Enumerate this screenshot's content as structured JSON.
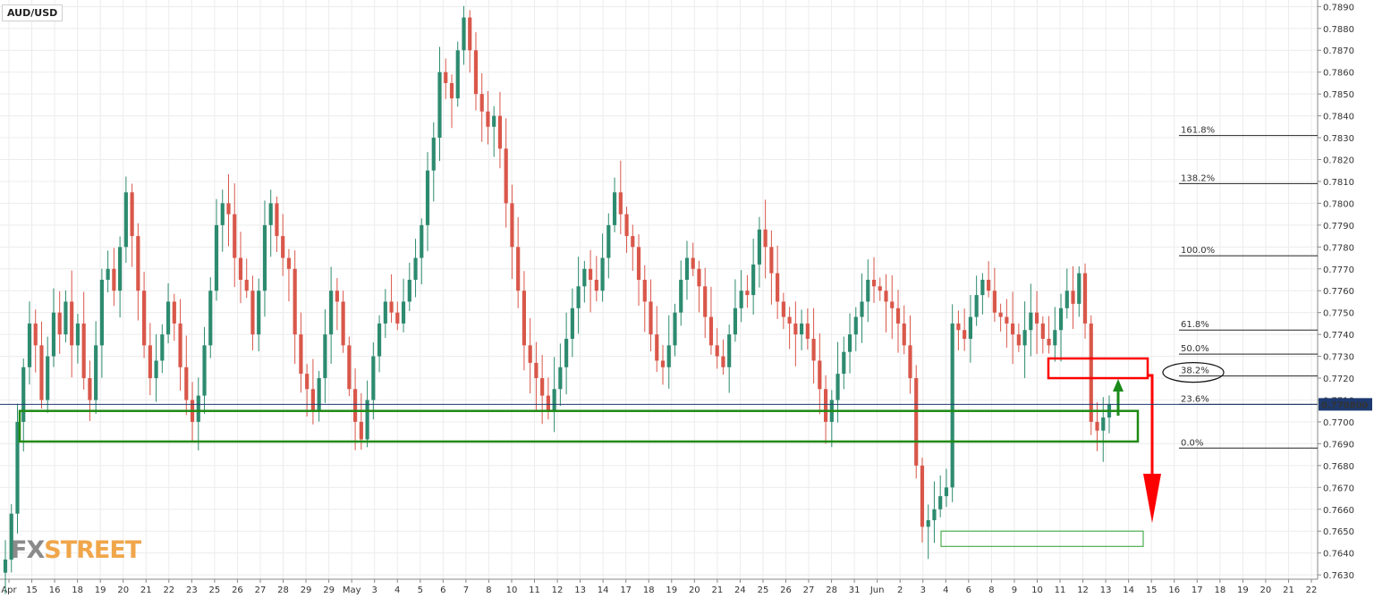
{
  "symbol": "AUD/USD",
  "logo": {
    "fx": "FX",
    "street": "STREET"
  },
  "current_price_label": "0.770800",
  "colors": {
    "up": "#2d8b6f",
    "down": "#d9574a",
    "support_box": "#1f8a14",
    "resistance_box": "#ff0000",
    "target_box": "#4caf50",
    "arrow_up": "#1a8a1a",
    "arrow_down": "#ff0000",
    "grid": "#ececec",
    "price_line": "#1e3a6e"
  },
  "chart_data": {
    "type": "candlestick",
    "title": "AUD/USD",
    "ylim": [
      0.7628,
      0.7893
    ],
    "y_ticks": [
      "0.7890",
      "0.7880",
      "0.7870",
      "0.7860",
      "0.7850",
      "0.7840",
      "0.7830",
      "0.7820",
      "0.7810",
      "0.7800",
      "0.7790",
      "0.7780",
      "0.7770",
      "0.7760",
      "0.7750",
      "0.7740",
      "0.7730",
      "0.7720",
      "0.7710",
      "0.7700",
      "0.7690",
      "0.7680",
      "0.7670",
      "0.7660",
      "0.7650",
      "0.7640",
      "0.7630"
    ],
    "x_ticks": [
      "Apr",
      "15",
      "16",
      "18",
      "19",
      "20",
      "21",
      "22",
      "23",
      "25",
      "26",
      "27",
      "28",
      "29",
      "29",
      "May",
      "3",
      "4",
      "5",
      "6",
      "7",
      "8",
      "10",
      "11",
      "12",
      "13",
      "14",
      "17",
      "18",
      "19",
      "20",
      "21",
      "24",
      "25",
      "26",
      "27",
      "28",
      "31",
      "Jun",
      "2",
      "3",
      "4",
      "6",
      "8",
      "9",
      "10",
      "11",
      "12",
      "13",
      "14",
      "15",
      "16",
      "17",
      "18",
      "19",
      "20",
      "21",
      "22"
    ],
    "current_price": 0.7708,
    "fibonacci": [
      {
        "label": "161.8%",
        "value": 0.7831
      },
      {
        "label": "138.2%",
        "value": 0.7809
      },
      {
        "label": "100.0%",
        "value": 0.7776
      },
      {
        "label": "61.8%",
        "value": 0.7742
      },
      {
        "label": "50.0%",
        "value": 0.7731
      },
      {
        "label": "38.2%",
        "value": 0.7721
      },
      {
        "label": "23.6%",
        "value": 0.7708
      },
      {
        "label": "0.0%",
        "value": 0.7688
      }
    ],
    "support_zone": {
      "from": 0.7691,
      "to": 0.7705
    },
    "resistance_zone": {
      "from": 0.772,
      "to": 0.7729
    },
    "target_zone": {
      "from": 0.7643,
      "to": 0.765
    },
    "price_path": [
      0.7637,
      0.7658,
      0.77,
      0.7725,
      0.7745,
      0.7735,
      0.771,
      0.773,
      0.775,
      0.774,
      0.7755,
      0.7735,
      0.7745,
      0.772,
      0.771,
      0.7735,
      0.7765,
      0.777,
      0.776,
      0.778,
      0.7805,
      0.7785,
      0.776,
      0.7735,
      0.772,
      0.7728,
      0.774,
      0.7755,
      0.7745,
      0.7725,
      0.771,
      0.77,
      0.7712,
      0.7735,
      0.776,
      0.779,
      0.78,
      0.7795,
      0.7775,
      0.7765,
      0.776,
      0.774,
      0.776,
      0.779,
      0.78,
      0.7785,
      0.7775,
      0.777,
      0.774,
      0.7722,
      0.7715,
      0.7705,
      0.772,
      0.774,
      0.776,
      0.7755,
      0.7735,
      0.7715,
      0.77,
      0.7692,
      0.771,
      0.773,
      0.7745,
      0.7755,
      0.775,
      0.7745,
      0.7755,
      0.7765,
      0.7775,
      0.779,
      0.7815,
      0.783,
      0.786,
      0.7855,
      0.7848,
      0.787,
      0.7885,
      0.787,
      0.785,
      0.7842,
      0.7835,
      0.784,
      0.7825,
      0.78,
      0.778,
      0.776,
      0.7735,
      0.7727,
      0.772,
      0.7712,
      0.7705,
      0.7715,
      0.7725,
      0.7738,
      0.7752,
      0.7762,
      0.777,
      0.7765,
      0.776,
      0.7775,
      0.779,
      0.7805,
      0.7795,
      0.7785,
      0.778,
      0.7765,
      0.7755,
      0.774,
      0.7728,
      0.7725,
      0.7735,
      0.775,
      0.7765,
      0.7775,
      0.777,
      0.7762,
      0.7748,
      0.7735,
      0.773,
      0.7725,
      0.774,
      0.7752,
      0.776,
      0.7758,
      0.7772,
      0.7788,
      0.778,
      0.7768,
      0.7755,
      0.7748,
      0.7745,
      0.774,
      0.7745,
      0.7738,
      0.7728,
      0.7715,
      0.77,
      0.771,
      0.7722,
      0.7732,
      0.774,
      0.7748,
      0.7755,
      0.7765,
      0.7762,
      0.776,
      0.7755,
      0.7752,
      0.7745,
      0.7735,
      0.772,
      0.768,
      0.7652,
      0.7655,
      0.766,
      0.7666,
      0.767,
      0.7745,
      0.7742,
      0.7738,
      0.7748,
      0.7758,
      0.7765,
      0.776,
      0.775,
      0.7748,
      0.7745,
      0.774,
      0.7735,
      0.7742,
      0.775,
      0.7745,
      0.7738,
      0.7735,
      0.7742,
      0.7752,
      0.776,
      0.7754,
      0.7768,
      0.7745,
      0.77,
      0.7696,
      0.7702,
      0.7708
    ]
  }
}
